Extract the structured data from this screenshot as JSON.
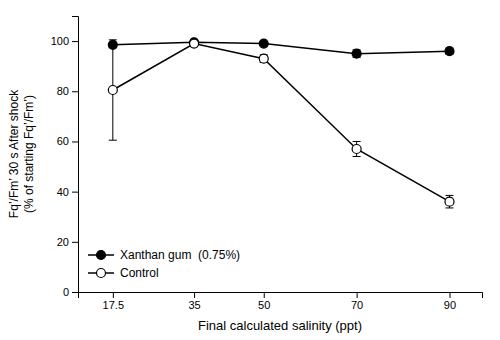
{
  "chart_data": {
    "type": "line",
    "xlabel": "Final calculated salinity (ppt)",
    "ylabel": "Fq’/Fm’ 30 s After shock\n(% of starting Fq’/Fm’)",
    "x": [
      17.5,
      35,
      50,
      70,
      90
    ],
    "series": [
      {
        "name": "Xanthan gum  (0.75%)",
        "color": "black",
        "marker": "circle",
        "values": [
          98.5,
          99.5,
          99.0,
          95.0,
          96.0
        ],
        "errors": [
          1.0,
          0.5,
          0.8,
          1.5,
          1.2
        ]
      },
      {
        "name": "Control",
        "color": "black",
        "marker": "open-circle",
        "values": [
          80.5,
          99.0,
          93.0,
          57.0,
          36.0
        ],
        "errors": [
          20.0,
          0.8,
          1.5,
          3.0,
          2.5
        ]
      }
    ],
    "xlim": [
      10,
      97
    ],
    "xticks": [
      17.5,
      35,
      50,
      70,
      90
    ],
    "ylim": [
      0,
      110
    ],
    "yticks": [
      0,
      20,
      40,
      60,
      80,
      100
    ],
    "grid": false,
    "legend": "lower left"
  }
}
